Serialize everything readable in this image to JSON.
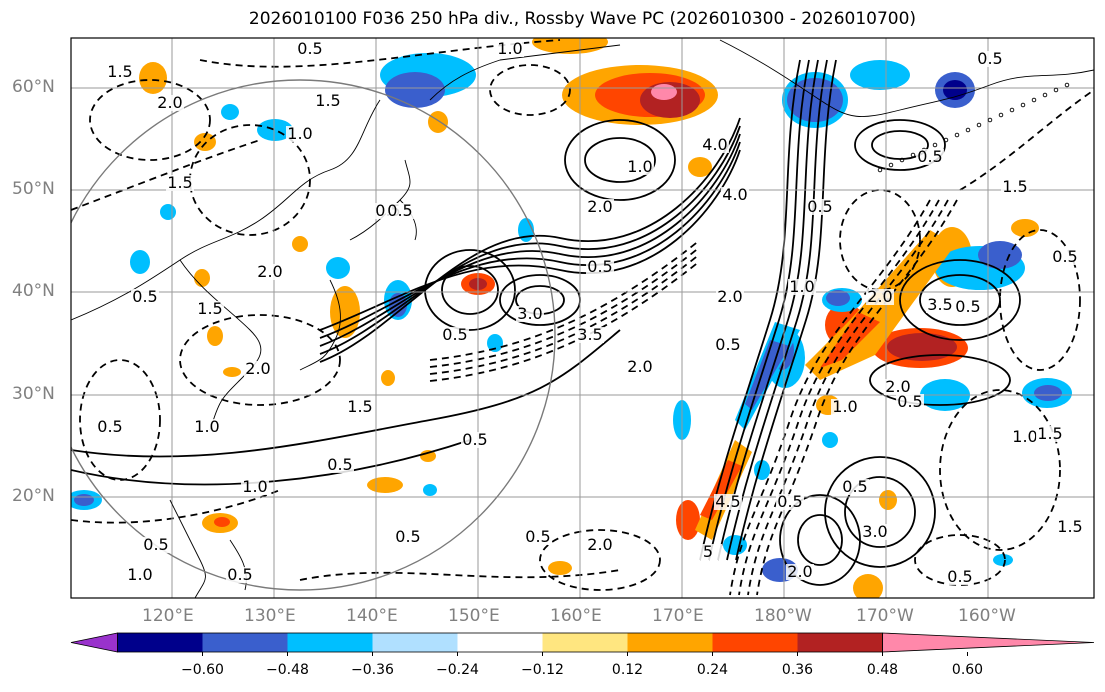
{
  "title": "2026010100 F036 250 hPa div., Rossby Wave PC (2026010300 - 2026010700)",
  "map": {
    "lat_labels": [
      "60°N",
      "50°N",
      "40°N",
      "30°N",
      "20°N"
    ],
    "lon_labels": [
      "120°E",
      "130°E",
      "140°E",
      "150°E",
      "160°E",
      "170°E",
      "180°W",
      "170°W",
      "160°W"
    ],
    "contour_labels": [
      "0.5",
      "1.0",
      "1.5",
      "2.0",
      "3.0",
      "3.5",
      "4.0",
      "4.5",
      "5"
    ],
    "grid": true
  },
  "colorbar": {
    "tick_labels": [
      "−0.60",
      "−0.48",
      "−0.36",
      "−0.24",
      "−0.12",
      "0.12",
      "0.24",
      "0.36",
      "0.48",
      "0.60"
    ],
    "colors": [
      "#9932cc",
      "#00008b",
      "#3a5fcd",
      "#00bfff",
      "#b0e0ff",
      "#ffffff",
      "#ffe680",
      "#ffa500",
      "#ff4500",
      "#b22222",
      "#ff88aa"
    ]
  }
}
